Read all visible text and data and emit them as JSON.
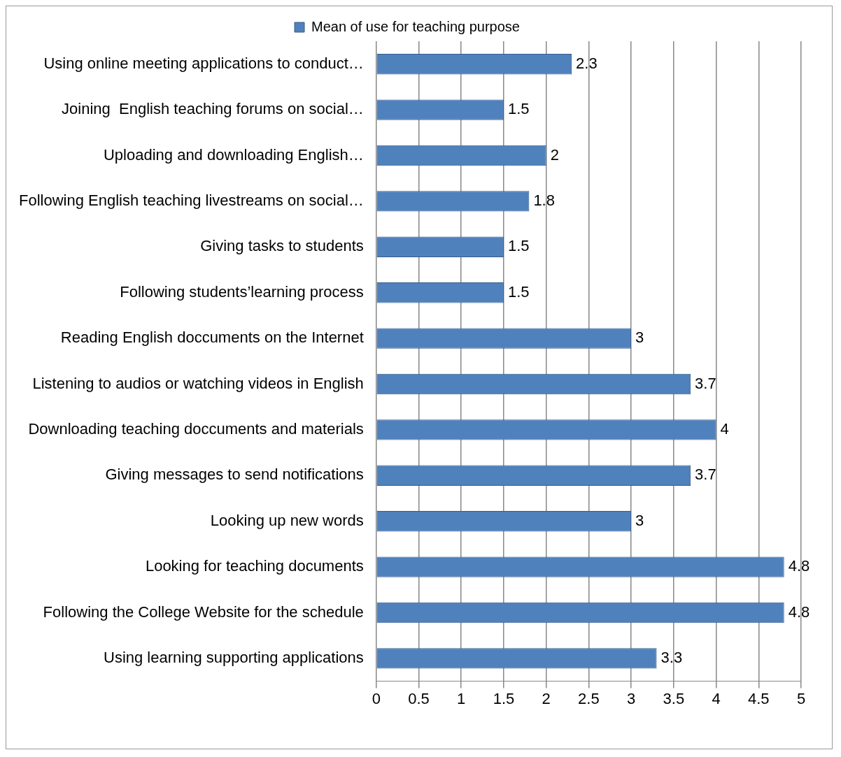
{
  "chart_data": {
    "type": "bar",
    "orientation": "horizontal",
    "categories": [
      "Using online meeting applications to conduct…",
      "Joining  English teaching forums on social…",
      "Uploading and downloading English…",
      "Following English teaching livestreams on social…",
      "Giving tasks to students",
      "Following students’learning process",
      "Reading English doccuments on the Internet",
      "Listening to audios or watching videos in English",
      "Downloading teaching doccuments and materials",
      "Giving messages to send notifications",
      "Looking up new words",
      "Looking for teaching documents",
      "Following the College Website for the schedule",
      "Using learning supporting applications"
    ],
    "series": [
      {
        "name": "Mean of use for teaching purpose",
        "color": "#4f81bd",
        "values": [
          2.3,
          1.5,
          2,
          1.8,
          1.5,
          1.5,
          3,
          3.7,
          4,
          3.7,
          3,
          4.8,
          4.8,
          3.3
        ]
      }
    ],
    "xlim": [
      0,
      5
    ],
    "xticks": [
      0,
      0.5,
      1,
      1.5,
      2,
      2.5,
      3,
      3.5,
      4,
      4.5,
      5
    ],
    "grid": "x",
    "legend": "top",
    "data_labels": true
  }
}
